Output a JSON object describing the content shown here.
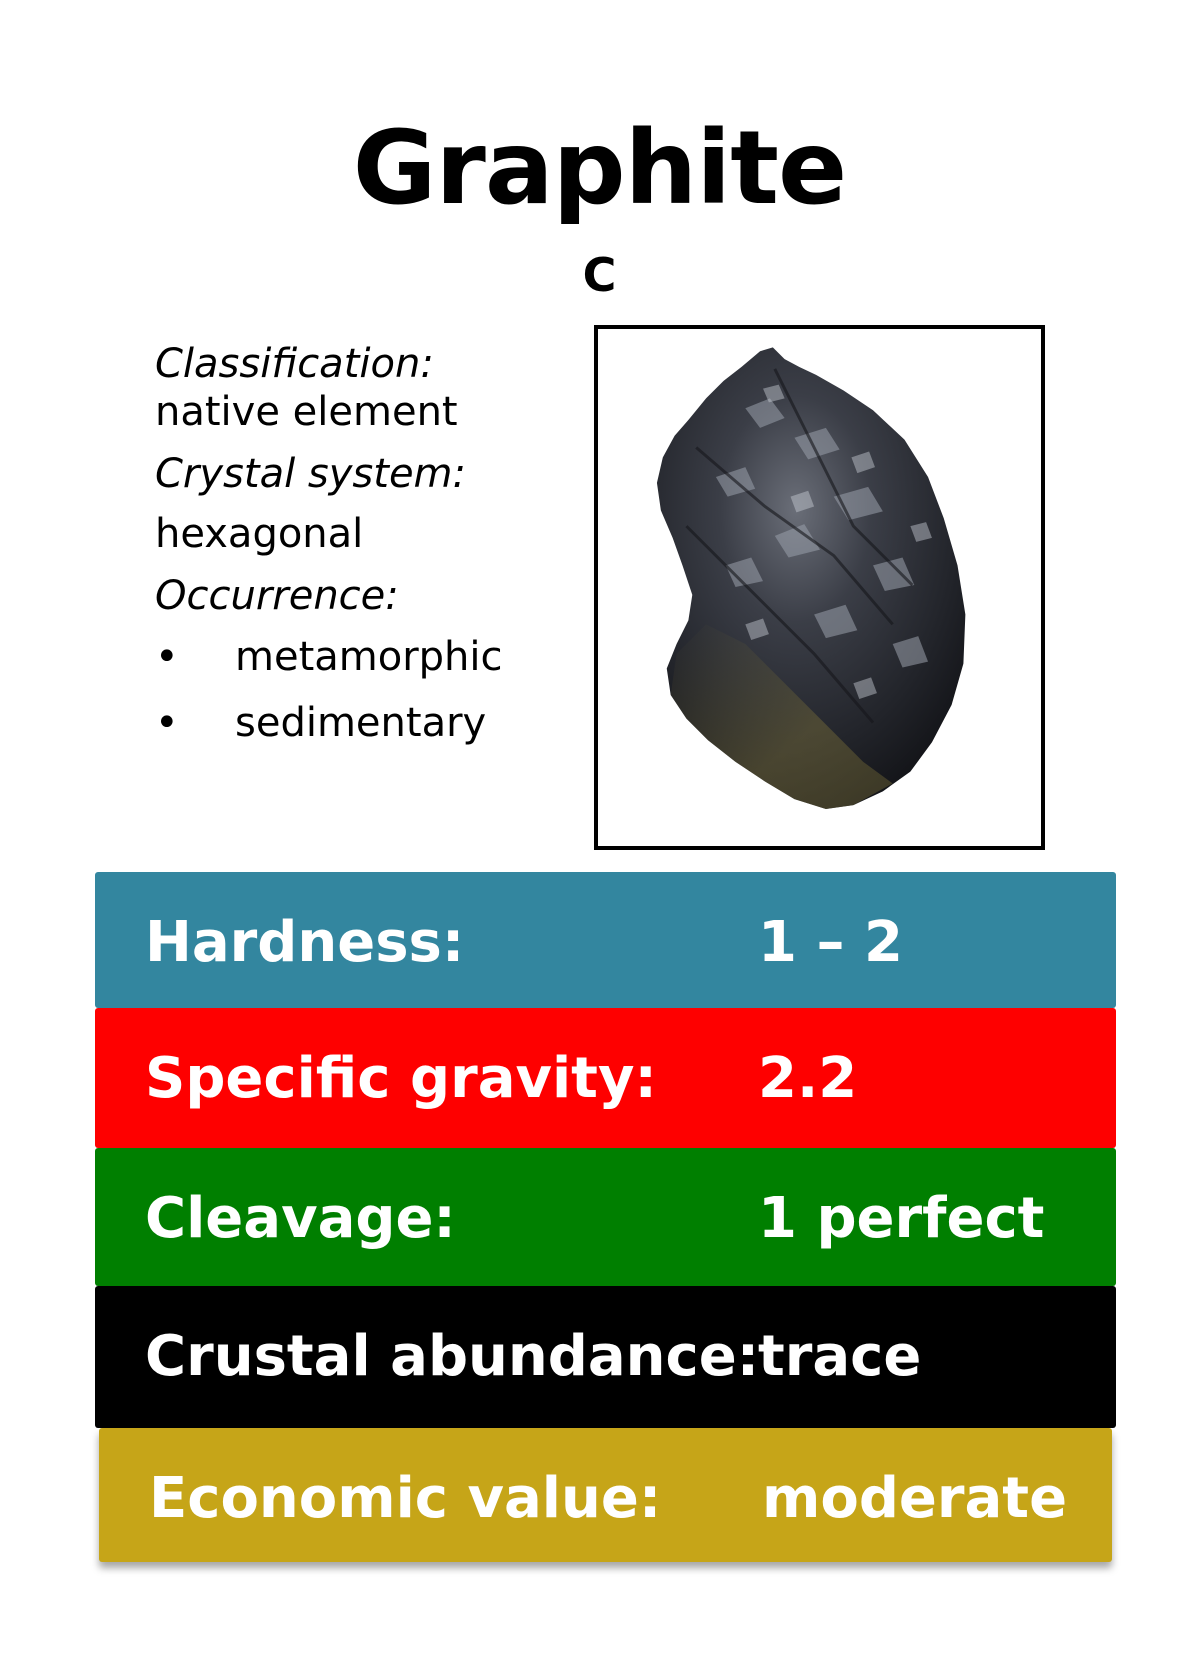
{
  "card": {
    "title": "Graphite",
    "formula": "C"
  },
  "info": {
    "classification_label": "Classification:",
    "classification_value": "native element",
    "crystal_label": "Crystal system:",
    "crystal_value": "hexagonal",
    "occurrence_label": "Occurrence:",
    "occurrence_items": [
      "metamorphic",
      "sedimentary"
    ],
    "bullet": "•"
  },
  "properties": [
    {
      "label": "Hardness:",
      "value": "1 – 2",
      "color": "#33869f"
    },
    {
      "label": "Specific gravity:",
      "value": "2.2",
      "color": "#fe0000"
    },
    {
      "label": "Cleavage:",
      "value": "1 perfect",
      "color": "#007f00"
    },
    {
      "label": "Crustal abundance:",
      "value": "trace",
      "color": "#000000"
    },
    {
      "label": "Economic value:",
      "value": "moderate",
      "color": "#c6a518"
    }
  ],
  "image": {
    "icon": "graphite-specimen-photo"
  }
}
